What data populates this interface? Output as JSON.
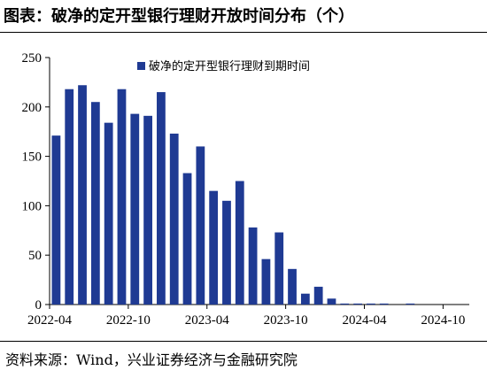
{
  "figure": {
    "title": "图表：破净的定开型银行理财开放时间分布（个）",
    "source": "资料来源：Wind，兴业证券经济与金融研究院"
  },
  "colors": {
    "bar": "#1f3a93",
    "axis": "#000000",
    "text": "#000000"
  },
  "chart_data": {
    "type": "bar",
    "title": "",
    "xlabel": "",
    "ylabel": "",
    "ylim": [
      0,
      250
    ],
    "yticks": [
      0,
      50,
      100,
      150,
      200,
      250
    ],
    "x_tick_labels": [
      "2022-04",
      "2022-10",
      "2023-04",
      "2023-10",
      "2024-04",
      "2024-10"
    ],
    "grid": false,
    "legend_position": "top-center",
    "categories": [
      "2022-04",
      "2022-05",
      "2022-06",
      "2022-07",
      "2022-08",
      "2022-09",
      "2022-10",
      "2022-11",
      "2022-12",
      "2023-01",
      "2023-02",
      "2023-03",
      "2023-04",
      "2023-05",
      "2023-06",
      "2023-07",
      "2023-08",
      "2023-09",
      "2023-10",
      "2023-11",
      "2023-12",
      "2024-01",
      "2024-02",
      "2024-03",
      "2024-04",
      "2024-05",
      "2024-06",
      "2024-07",
      "2024-08",
      "2024-09",
      "2024-10",
      "2024-11"
    ],
    "series": [
      {
        "name": "破净的定开型银行理财到期时间",
        "values": [
          171,
          218,
          222,
          205,
          184,
          218,
          193,
          191,
          215,
          173,
          133,
          160,
          115,
          105,
          125,
          78,
          46,
          73,
          36,
          11,
          18,
          6,
          1,
          1,
          1,
          1,
          0,
          1,
          0,
          0,
          0,
          0
        ]
      }
    ]
  }
}
